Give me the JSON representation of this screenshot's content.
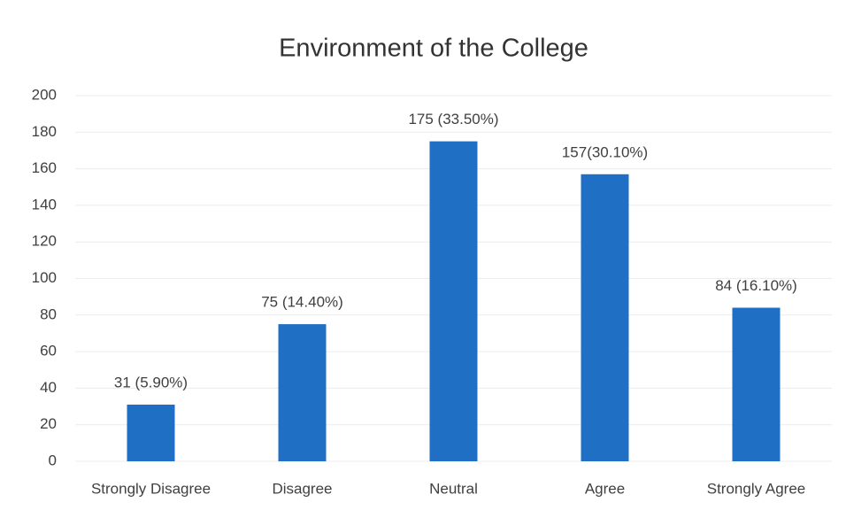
{
  "chart_data": {
    "type": "bar",
    "title": "Environment of the College",
    "categories": [
      "Strongly Disagree",
      "Disagree",
      "Neutral",
      "Agree",
      "Strongly Agree"
    ],
    "values": [
      31,
      75,
      175,
      157,
      84
    ],
    "value_labels": [
      "31 (5.90%)",
      "75 (14.40%)",
      "175 (33.50%)",
      "157(30.10%)",
      "84 (16.10%)"
    ],
    "color": "#1f6fc5",
    "ylim": [
      0,
      200
    ],
    "yticks": [
      0,
      20,
      40,
      60,
      80,
      100,
      120,
      140,
      160,
      180,
      200
    ],
    "grid": true
  }
}
